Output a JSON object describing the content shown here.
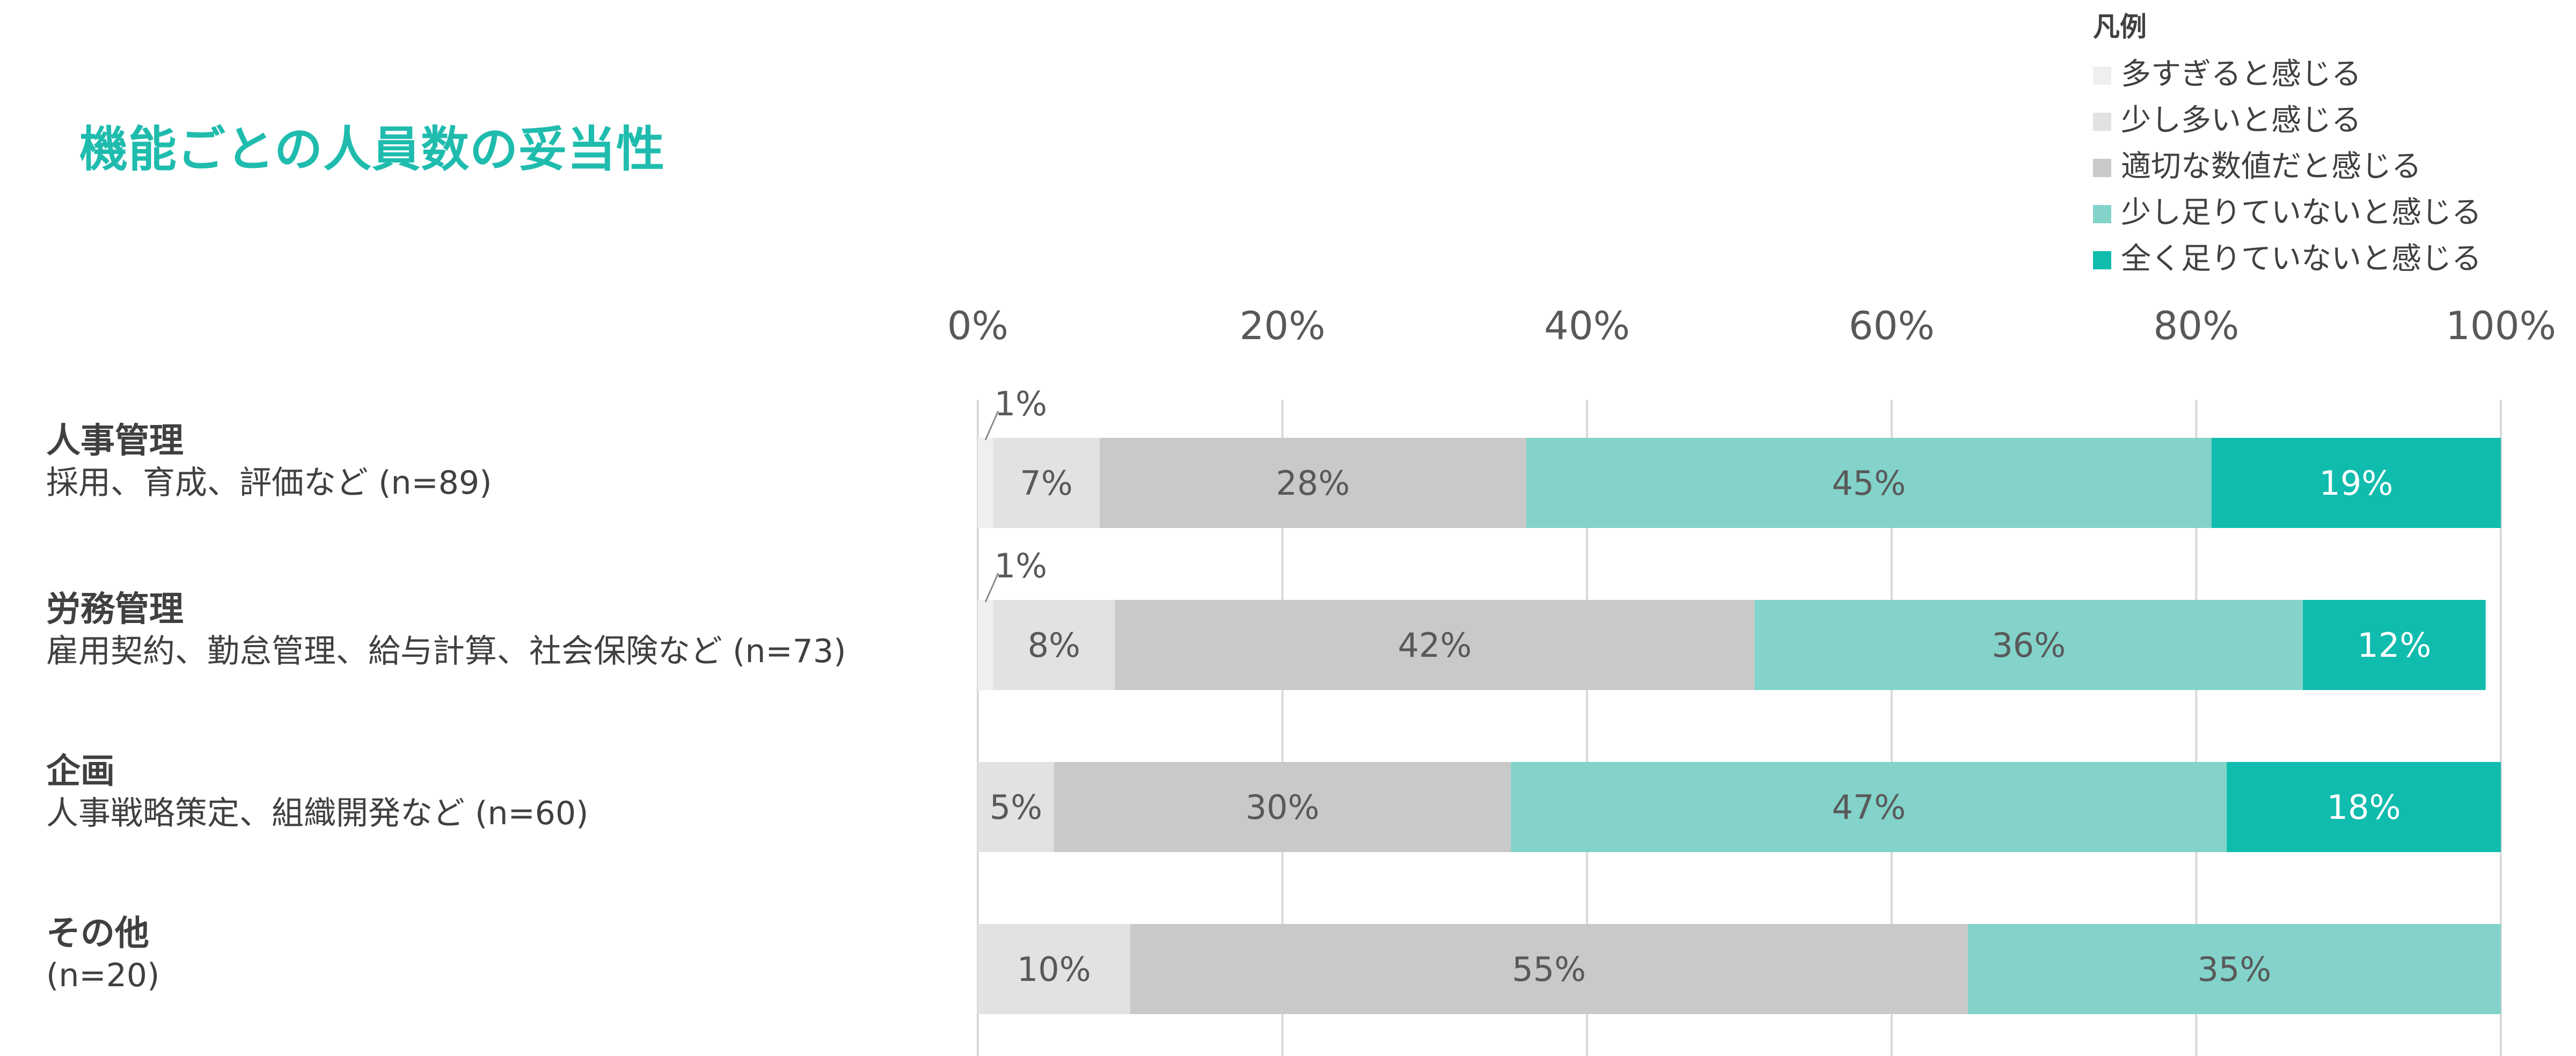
{
  "title": "機能ごとの人員数の妥当性",
  "legend": {
    "title": "凡例",
    "items": [
      {
        "label": "多すぎると感じる",
        "color": "#efefef"
      },
      {
        "label": "少し多いと感じる",
        "color": "#e2e2e2"
      },
      {
        "label": "適切な数値だと感じる",
        "color": "#c9c9c9"
      },
      {
        "label": "少し足りていないと感じる",
        "color": "#83d3ca"
      },
      {
        "label": "全く足りていないと感じる",
        "color": "#10bcad"
      }
    ]
  },
  "rows": [
    {
      "name": "人事管理",
      "desc": "採用、育成、評価など (n=89)"
    },
    {
      "name": "労務管理",
      "desc": "雇用契約、勤怠管理、給与計算、社会保険など (n=73)"
    },
    {
      "name": "企画",
      "desc": "人事戦略策定、組織開発など (n=60)"
    },
    {
      "name": "その他",
      "desc": "(n=20)"
    }
  ],
  "chart_data": {
    "type": "bar",
    "orientation": "horizontal",
    "stacked": true,
    "title": "機能ごとの人員数の妥当性",
    "categories": [
      "人事管理",
      "労務管理",
      "企画",
      "その他"
    ],
    "series": [
      {
        "name": "多すぎると感じる",
        "color": "#efefef",
        "values": [
          1,
          1,
          0,
          0
        ],
        "labels": [
          "1%",
          "1%",
          "",
          ""
        ]
      },
      {
        "name": "少し多いと感じる",
        "color": "#e2e2e2",
        "values": [
          7,
          8,
          5,
          10
        ],
        "labels": [
          "7%",
          "8%",
          "5%",
          "10%"
        ]
      },
      {
        "name": "適切な数値だと感じる",
        "color": "#c9c9c9",
        "values": [
          28,
          42,
          30,
          55
        ],
        "labels": [
          "28%",
          "42%",
          "30%",
          "55%"
        ]
      },
      {
        "name": "少し足りていないと感じる",
        "color": "#83d3ca",
        "values": [
          45,
          36,
          47,
          35
        ],
        "labels": [
          "45%",
          "36%",
          "47%",
          "35%"
        ]
      },
      {
        "name": "全く足りていないと感じる",
        "color": "#10bcad",
        "values": [
          19,
          12,
          18,
          0
        ],
        "labels": [
          "19%",
          "12%",
          "18%",
          ""
        ]
      }
    ],
    "xlim": [
      0,
      100
    ],
    "x_ticks": [
      "0%",
      "20%",
      "40%",
      "60%",
      "80%",
      "100%"
    ],
    "grid": true,
    "legend_position": "top-right"
  }
}
